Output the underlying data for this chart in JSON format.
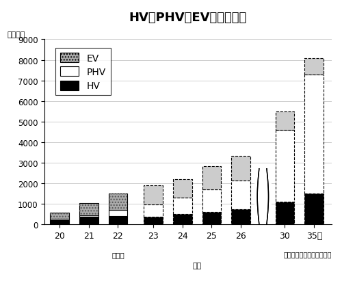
{
  "title": "HV、PHV、EVの世界市場",
  "ylabel": "（万台）",
  "hv_values": [
    200,
    370,
    400,
    350,
    490,
    580,
    730,
    1100,
    1500
  ],
  "phv_values": [
    50,
    70,
    300,
    600,
    800,
    1100,
    1400,
    3500,
    5800
  ],
  "ev_values": [
    300,
    600,
    800,
    950,
    900,
    1150,
    1200,
    900,
    800
  ],
  "ylim": [
    0,
    9000
  ],
  "yticks": [
    0,
    1000,
    2000,
    3000,
    4000,
    5000,
    6000,
    7000,
    8000,
    9000
  ],
  "solid_bar_indices": [
    0,
    1,
    2
  ],
  "dashed_bar_indices": [
    3,
    4,
    5,
    6,
    7,
    8
  ],
  "x_labels": [
    "20",
    "21",
    "22",
    "23",
    "24",
    "25",
    "26",
    "30",
    "35年"
  ],
  "source_text": "富士経済の調査を基に作成",
  "background_color": "#ffffff",
  "bar_width": 0.65,
  "hv_color": "#000000",
  "phv_color": "#ffffff",
  "ev_color": "#aaaaaa",
  "grid_color": "#bbbbbb",
  "legend_labels": [
    "EV",
    "PHV",
    "HV"
  ]
}
